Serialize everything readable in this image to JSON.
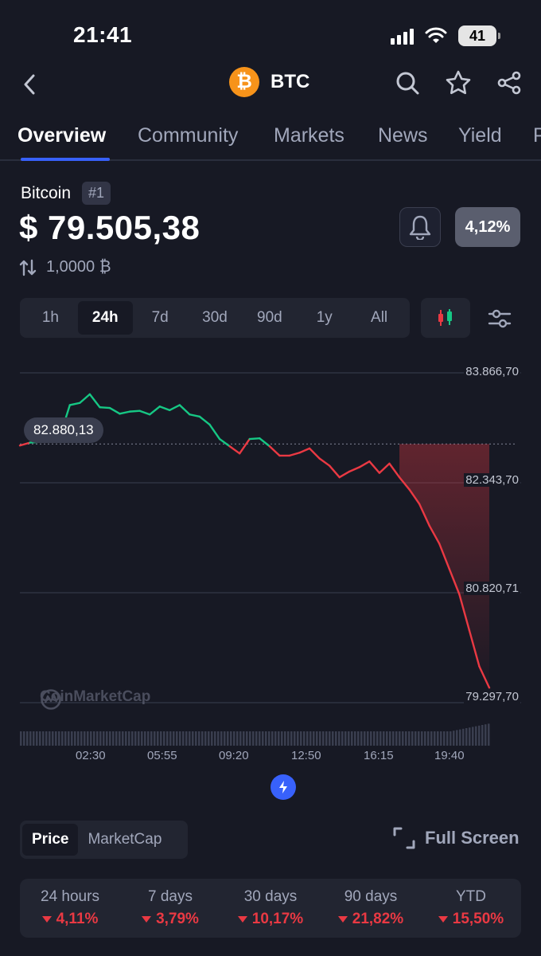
{
  "status": {
    "time": "21:41",
    "battery": "41"
  },
  "header": {
    "coin_symbol": "BTC",
    "logo_glyph": "₿",
    "icons": [
      "back-icon",
      "search-icon",
      "star-icon",
      "share-icon"
    ]
  },
  "tabs": [
    {
      "label": "Overview",
      "active": true
    },
    {
      "label": "Community",
      "active": false
    },
    {
      "label": "Markets",
      "active": false
    },
    {
      "label": "News",
      "active": false
    },
    {
      "label": "Yield",
      "active": false
    },
    {
      "label": "P",
      "active": false
    }
  ],
  "coin": {
    "name": "Bitcoin",
    "rank": "#1",
    "price": "$ 79.505,38",
    "change_badge": "4,12%",
    "conversion": "1,0000 ₿"
  },
  "ranges": [
    "1h",
    "24h",
    "7d",
    "30d",
    "90d",
    "1y",
    "All"
  ],
  "active_range": "24h",
  "chart": {
    "reference_value": "82.880,13",
    "watermark": "CoinMarketCap",
    "y_ticks": [
      "83.866,70",
      "82.343,70",
      "80.820,71",
      "79.297,70"
    ],
    "x_ticks": [
      "02:30",
      "05:55",
      "09:20",
      "12:50",
      "16:15",
      "19:40"
    ],
    "up_color": "#16c784",
    "down_color": "#ea3943"
  },
  "chart_data": {
    "type": "line",
    "x": [
      "00:30",
      "01:00",
      "01:30",
      "02:00",
      "02:30",
      "03:00",
      "03:30",
      "04:00",
      "04:30",
      "05:00",
      "05:30",
      "05:55",
      "06:30",
      "07:00",
      "07:30",
      "08:00",
      "08:30",
      "09:00",
      "09:20",
      "10:00",
      "10:30",
      "11:00",
      "11:30",
      "12:00",
      "12:30",
      "12:50",
      "13:30",
      "14:00",
      "14:30",
      "15:00",
      "15:30",
      "16:00",
      "16:15",
      "16:45",
      "17:15",
      "17:45",
      "18:15",
      "18:45",
      "19:15",
      "19:40",
      "20:00",
      "20:15",
      "20:30",
      "20:45",
      "21:00",
      "21:15",
      "21:30",
      "21:41"
    ],
    "values": [
      82860,
      82900,
      82910,
      82950,
      82980,
      83420,
      83450,
      83570,
      83390,
      83380,
      83300,
      83330,
      83340,
      83290,
      83400,
      83350,
      83420,
      83290,
      83260,
      83150,
      82950,
      82850,
      82750,
      82950,
      82960,
      82850,
      82720,
      82720,
      82760,
      82820,
      82680,
      82580,
      82420,
      82500,
      82560,
      82640,
      82480,
      82610,
      82420,
      82250,
      82050,
      81750,
      81500,
      81150,
      80800,
      80300,
      79800,
      79505
    ],
    "reference_value": 82880.13,
    "y_ticks": [
      83866.7,
      82343.7,
      80820.71,
      79297.7
    ],
    "ylim": [
      79297.7,
      83866.7
    ],
    "grid": true
  },
  "metric_toggle": {
    "price": "Price",
    "marketcap": "MarketCap"
  },
  "fullscreen_label": "Full Screen",
  "performance": [
    {
      "period": "24 hours",
      "change": "4,11%"
    },
    {
      "period": "7 days",
      "change": "3,79%"
    },
    {
      "period": "30 days",
      "change": "10,17%"
    },
    {
      "period": "90 days",
      "change": "21,82%"
    },
    {
      "period": "YTD",
      "change": "15,50%"
    }
  ]
}
